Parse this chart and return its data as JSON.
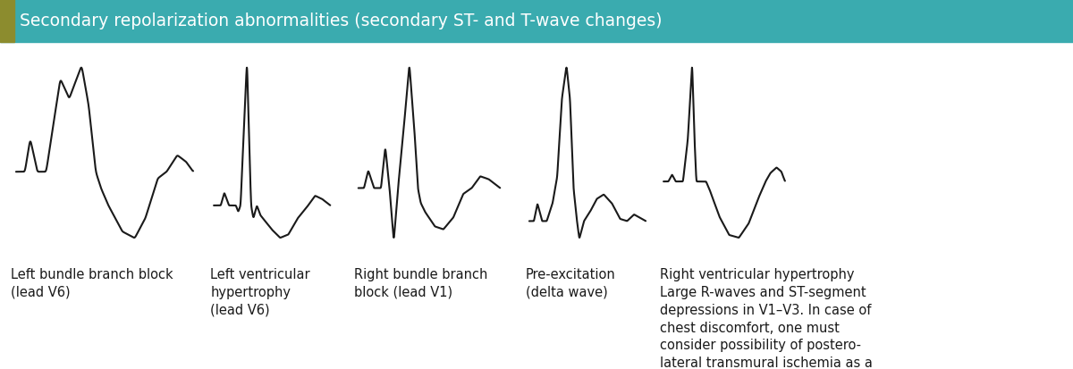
{
  "title": "Secondary repolarization abnormalities (secondary ST- and T-wave changes)",
  "title_bg": "#3aabaf",
  "title_left_color": "#8c8c2e",
  "title_text_color": "#ffffff",
  "bg_color": "#ffffff",
  "ecg_color": "#1a1a1a",
  "labels": [
    "Left bundle branch block\n(lead V6)",
    "Left ventricular\nhypertrophy\n(lead V6)",
    "Right bundle branch\nblock (lead V1)",
    "Pre-excitation\n(delta wave)",
    "Right ventricular hypertrophy\nLarge R-waves and ST-segment\ndepressions in V1–V3. In case of\nchest discomfort, one must\nconsider possibility of postero-\nlateral transmural ischemia as a\ndifferential diagnosis."
  ],
  "label_fontsize": 10.5,
  "title_fontsize": 13.5
}
